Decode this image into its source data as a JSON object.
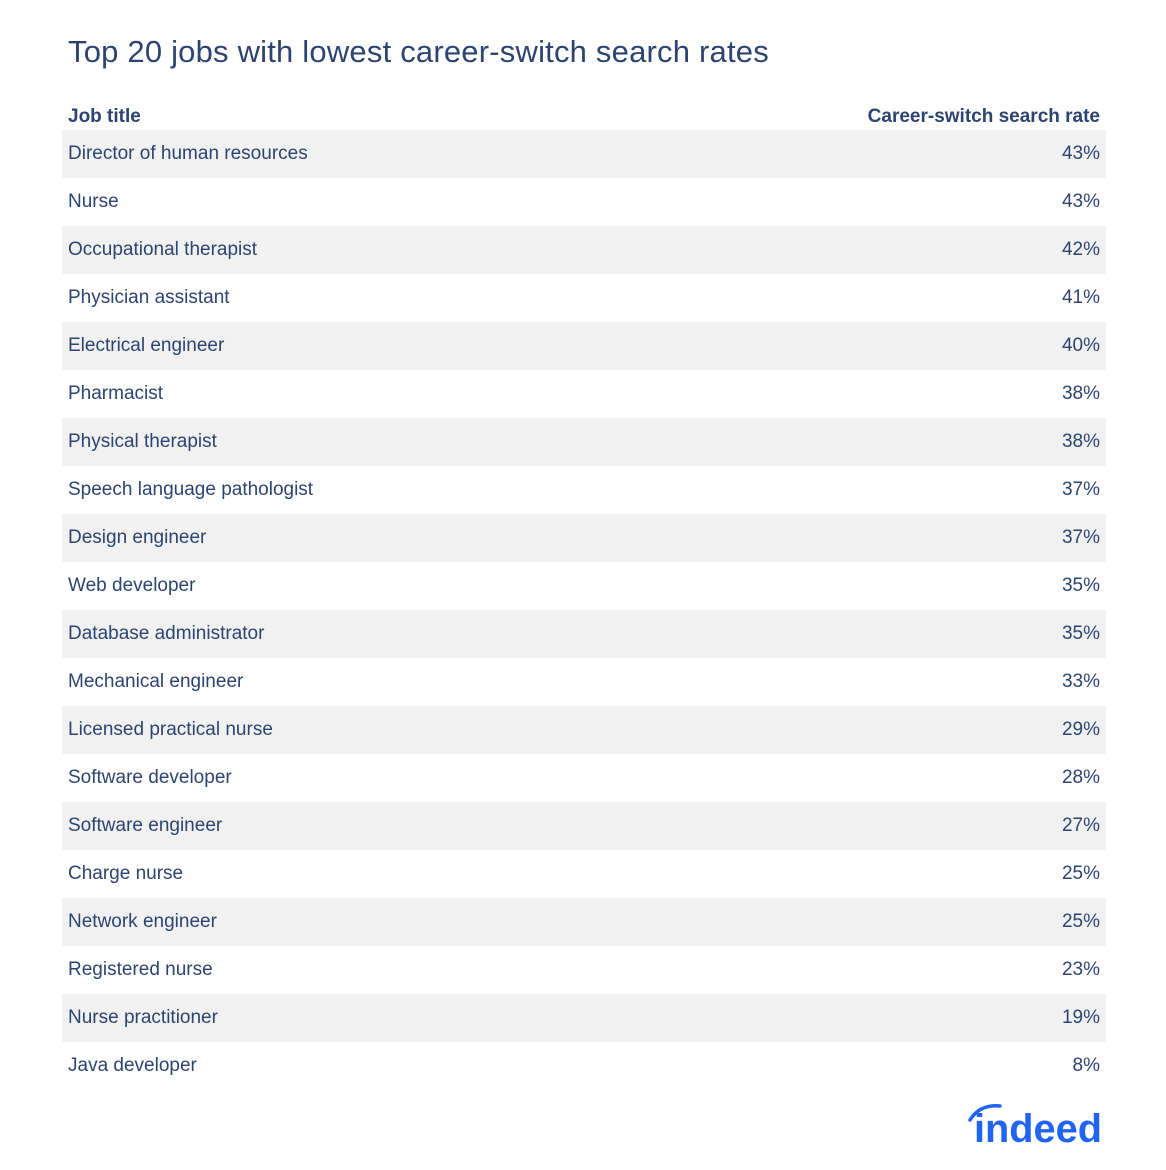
{
  "chart_data": {
    "type": "table",
    "title": "Top 20 jobs with lowest career-switch search rates",
    "columns": [
      "Job title",
      "Career-switch search rate"
    ],
    "rows": [
      {
        "job": "Director of human resources",
        "rate": "43%"
      },
      {
        "job": "Nurse",
        "rate": "43%"
      },
      {
        "job": "Occupational therapist",
        "rate": "42%"
      },
      {
        "job": "Physician assistant",
        "rate": "41%"
      },
      {
        "job": "Electrical engineer",
        "rate": "40%"
      },
      {
        "job": "Pharmacist",
        "rate": "38%"
      },
      {
        "job": "Physical therapist",
        "rate": "38%"
      },
      {
        "job": "Speech language pathologist",
        "rate": "37%"
      },
      {
        "job": "Design engineer",
        "rate": "37%"
      },
      {
        "job": "Web developer",
        "rate": "35%"
      },
      {
        "job": "Database administrator",
        "rate": "35%"
      },
      {
        "job": "Mechanical engineer",
        "rate": "33%"
      },
      {
        "job": "Licensed practical nurse",
        "rate": "29%"
      },
      {
        "job": "Software developer",
        "rate": "28%"
      },
      {
        "job": "Software engineer",
        "rate": "27%"
      },
      {
        "job": "Charge nurse",
        "rate": "25%"
      },
      {
        "job": "Network engineer",
        "rate": "25%"
      },
      {
        "job": "Registered nurse",
        "rate": "23%"
      },
      {
        "job": "Nurse practitioner",
        "rate": "19%"
      },
      {
        "job": "Java developer",
        "rate": "8%"
      }
    ]
  },
  "logo": {
    "text": "indeed",
    "color": "#2164f3"
  },
  "colors": {
    "text": "#2d4470",
    "stripe": "#f1f1f1"
  }
}
